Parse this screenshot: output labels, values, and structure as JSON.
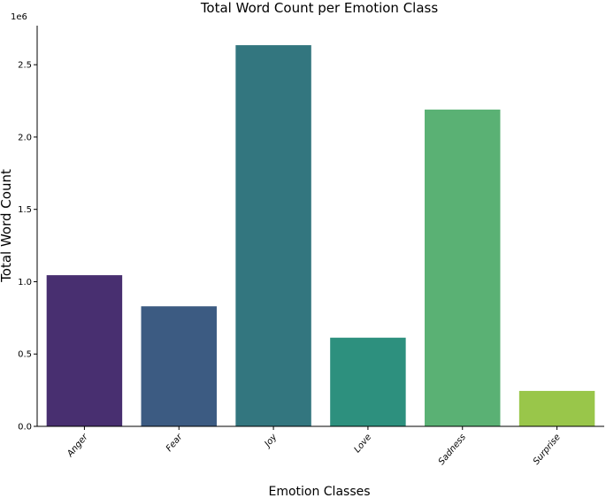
{
  "chart_data": {
    "type": "bar",
    "title": "Total Word Count per Emotion Class",
    "xlabel": "Emotion Classes",
    "ylabel": "Total Word Count",
    "scale_label": "1e6",
    "categories": [
      "Anger",
      "Fear",
      "Joy",
      "Love",
      "Sadness",
      "Surprise"
    ],
    "values": [
      1045000,
      830000,
      2635000,
      613000,
      2190000,
      245000
    ],
    "colors": [
      "#482f70",
      "#3c5b82",
      "#33767f",
      "#2d907e",
      "#5ab174",
      "#99c64a"
    ],
    "yticks": [
      0,
      500000,
      1000000,
      1500000,
      2000000,
      2500000
    ],
    "ytick_labels": [
      "0.0",
      "0.5",
      "1.0",
      "1.5",
      "2.0",
      "2.5"
    ],
    "ylim": [
      0,
      2770000
    ],
    "grid": false,
    "legend": false
  }
}
